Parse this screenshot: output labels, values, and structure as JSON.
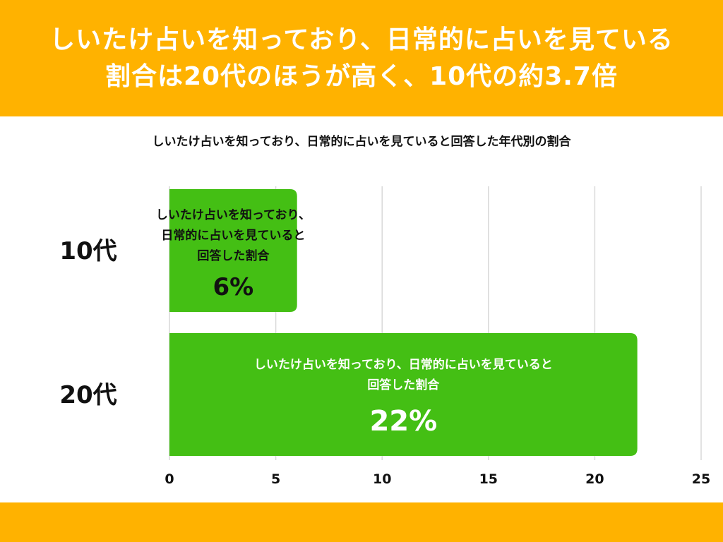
{
  "header": {
    "title_line1": "しいたけ占いを知っており、日常的に占いを見ている",
    "title_line2": "割合は20代のほうが高く、10代の約3.7倍"
  },
  "colors": {
    "banner": "#FFB200",
    "bar": "#44BF14",
    "grid": "#d9d9d9"
  },
  "chart_data": {
    "type": "bar",
    "orientation": "horizontal",
    "title": "しいたけ占いを知っており、日常的に占いを見ていると回答した年代別の割合",
    "categories": [
      "10代",
      "20代"
    ],
    "values": [
      6,
      22
    ],
    "bar_label_lines": [
      [
        "しいたけ占いを知っており、",
        "日常的に占いを見ていると",
        "回答した割合"
      ],
      [
        "しいたけ占いを知っており、日常的に占いを見ていると",
        "回答した割合"
      ]
    ],
    "value_labels": [
      "6%",
      "22%"
    ],
    "xlim": [
      0,
      25
    ],
    "xticks": [
      0,
      5,
      10,
      15,
      20,
      25
    ],
    "grid": true
  }
}
